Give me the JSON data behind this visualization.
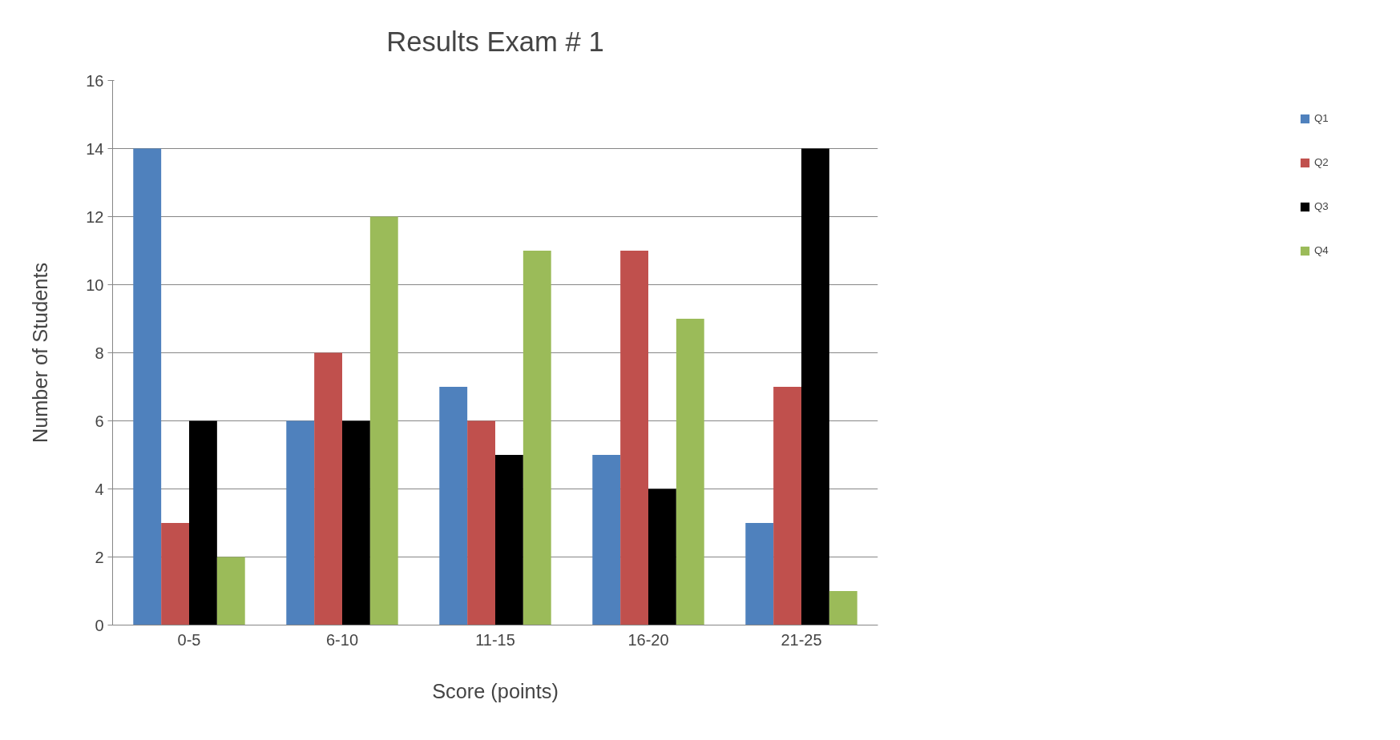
{
  "chart_data": {
    "type": "bar",
    "title": "Results Exam # 1",
    "xlabel": "Score (points)",
    "ylabel": "Number of Students",
    "categories": [
      "0-5",
      "6-10",
      "11-15",
      "16-20",
      "21-25"
    ],
    "series": [
      {
        "name": "Q1",
        "color": "#4f81bd",
        "values": [
          14,
          6,
          7,
          5,
          3
        ]
      },
      {
        "name": "Q2",
        "color": "#c0504d",
        "values": [
          3,
          8,
          6,
          11,
          7
        ]
      },
      {
        "name": "Q3",
        "color": "#000000",
        "values": [
          6,
          6,
          5,
          4,
          14
        ]
      },
      {
        "name": "Q4",
        "color": "#9bbb59",
        "values": [
          2,
          12,
          11,
          9,
          1
        ]
      }
    ],
    "ylim": [
      0,
      16
    ],
    "yticks": [
      0,
      2,
      4,
      6,
      8,
      10,
      12,
      14,
      16
    ],
    "grid": "y",
    "legend": "right"
  }
}
